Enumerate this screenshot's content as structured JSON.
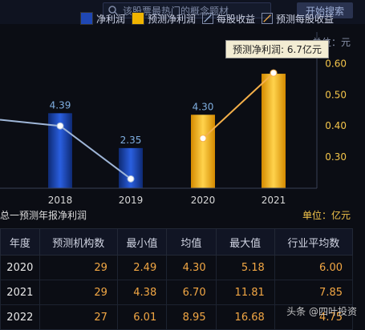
{
  "search": {
    "placeholder": "该股票最热门的概念题材",
    "button_label": "开始搜索"
  },
  "legend": [
    {
      "label": "净利润",
      "color": "#1f47b3",
      "type": "bar"
    },
    {
      "label": "预测净利润",
      "color": "#f0b400",
      "type": "bar"
    },
    {
      "label": "每股收益",
      "color": "#9fb6d8",
      "type": "line"
    },
    {
      "label": "预测每股收益",
      "color": "#f5b04a",
      "type": "line"
    }
  ],
  "unit_top": "单位：元",
  "tooltip": "预测净利润: 6.7亿元",
  "chart_data": {
    "type": "bar",
    "categories": [
      "2018",
      "2019",
      "2020",
      "2021"
    ],
    "series": [
      {
        "name": "净利润",
        "values": [
          4.39,
          2.35,
          null,
          null
        ],
        "color": "#1f47b3"
      },
      {
        "name": "预测净利润",
        "values": [
          null,
          null,
          4.3,
          6.7
        ],
        "color": "#f0b400"
      }
    ],
    "bar_labels": [
      "4.39",
      "2.35",
      "4.30",
      ""
    ],
    "line_series": [
      {
        "name": "每股收益",
        "values": [
          0.4,
          0.23,
          null,
          null
        ],
        "color": "#9fb6d8"
      },
      {
        "name": "预测每股收益",
        "values": [
          null,
          null,
          0.36,
          0.57
        ],
        "color": "#f5b04a"
      }
    ],
    "y_right_ticks": [
      "0.60",
      "0.50",
      "0.40",
      "0.30"
    ],
    "y_right_lim": [
      0.2,
      0.65
    ],
    "y_left_lim": [
      0,
      7.5
    ],
    "grid": false,
    "legend_position": "top"
  },
  "table_section": {
    "title": "总一预测年报净利润",
    "unit": "单位：亿元",
    "headers": [
      "年度",
      "预测机构数",
      "最小值",
      "均值",
      "最大值",
      "行业平均数"
    ],
    "rows": [
      [
        "2020",
        "29",
        "2.49",
        "4.30",
        "5.18",
        "6.00"
      ],
      [
        "2021",
        "29",
        "4.38",
        "6.70",
        "11.81",
        "7.85"
      ],
      [
        "2022",
        "27",
        "6.01",
        "8.95",
        "16.68",
        "4.75"
      ]
    ]
  },
  "watermark": "头条 @四叶投资"
}
